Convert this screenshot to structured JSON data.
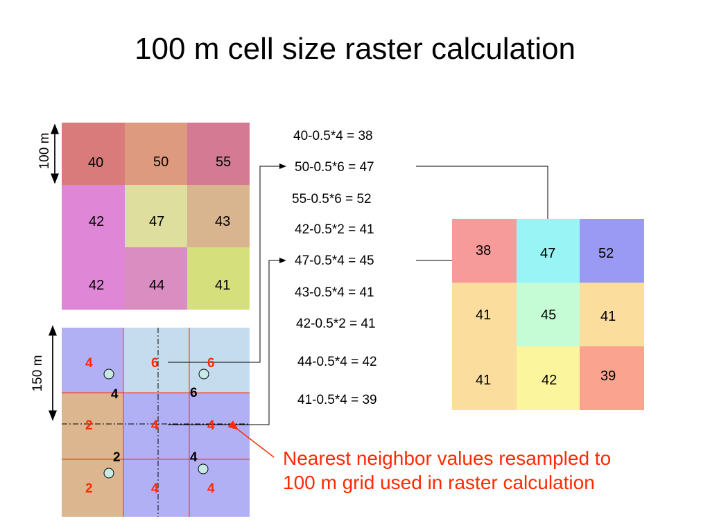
{
  "title": "100 m cell size raster calculation",
  "grid100": {
    "label": "100 m",
    "values": [
      "40",
      "50",
      "55",
      "42",
      "47",
      "43",
      "42",
      "44",
      "41"
    ],
    "colors": [
      "#d97b7b",
      "#dd9a7e",
      "#d57a93",
      "#df86d6",
      "#dede9e",
      "#d8b48f",
      "#df86d6",
      "#d98dc0",
      "#d5e07c"
    ]
  },
  "grid150": {
    "label": "150 m",
    "colors": [
      "#b2b0f4",
      "#c5dbee",
      "#c5dbee",
      "#dcb68f",
      "#b2b0f4",
      "#b2b0f4",
      "#dcb68f",
      "#b2b0f4",
      "#b2b0f4"
    ],
    "red_values": [
      "4",
      "6",
      "6",
      "2",
      "4",
      "4",
      "2",
      "4",
      "4"
    ],
    "black_values": [
      "4",
      "6",
      "2",
      "4"
    ]
  },
  "equations": [
    "40-0.5*4 = 38",
    "50-0.5*6 = 47",
    "55-0.5*6 = 52",
    "42-0.5*2 = 41",
    "47-0.5*4 = 45",
    "43-0.5*4 = 41",
    "42-0.5*2 = 41",
    "44-0.5*4 = 42",
    "41-0.5*4 = 39"
  ],
  "result": {
    "values": [
      "38",
      "47",
      "52",
      "41",
      "45",
      "41",
      "41",
      "42",
      "39"
    ],
    "colors": [
      "#f79a9a",
      "#99f5f5",
      "#9a9af5",
      "#fbdd9e",
      "#c5fbd5",
      "#fbdd9e",
      "#fbdd9e",
      "#fbf59e",
      "#faa48f"
    ]
  },
  "note_lines": [
    "Nearest neighbor values resampled to",
    "100 m grid used in raster calculation"
  ]
}
